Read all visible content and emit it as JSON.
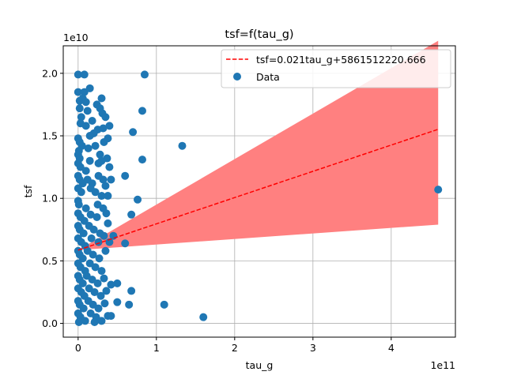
{
  "chart_data": {
    "type": "scatter",
    "title": "tsf=f(tau_g)",
    "xlabel": "tau_g",
    "ylabel": "tsf",
    "x_multiplier": "1e11",
    "y_multiplier": "1e10",
    "xlim": [
      -19000000000.0,
      482000000000.0
    ],
    "ylim": [
      -1100000000.0,
      22200000000.0
    ],
    "x_ticks": [
      0,
      100000000000.0,
      200000000000.0,
      300000000000.0,
      400000000000.0
    ],
    "x_tick_labels": [
      "0",
      "1",
      "2",
      "3",
      "4"
    ],
    "y_ticks": [
      0,
      5000000000.0,
      10000000000.0,
      15000000000.0,
      20000000000.0
    ],
    "y_tick_labels": [
      "0.0",
      "0.5",
      "1.0",
      "1.5",
      "2.0"
    ],
    "grid": true,
    "legend_position": "top-right",
    "colors": {
      "points": "#1f77b4",
      "fit_line": "#ff0000",
      "band": "#ff8080",
      "grid": "#b0b0b0"
    },
    "fit": {
      "label": "tsf=0.021tau_g+5861512220.666",
      "slope": 0.021,
      "intercept": 5861512220.666,
      "x_range": [
        0,
        460000000000.0
      ],
      "band_lower_end": 7900000000.0,
      "band_upper_end": 22600000000.0
    },
    "series": [
      {
        "name": "Data",
        "points": [
          [
            0,
            19900000000.0
          ],
          [
            8000000000.0,
            19900000000.0
          ],
          [
            0,
            18500000000.0
          ],
          [
            8000000000.0,
            18500000000.0
          ],
          [
            15000000000.0,
            18800000000.0
          ],
          [
            2000000000.0,
            17800000000.0
          ],
          [
            6000000000.0,
            18000000000.0
          ],
          [
            10000000000.0,
            17700000000.0
          ],
          [
            30000000000.0,
            18000000000.0
          ],
          [
            2000000000.0,
            17200000000.0
          ],
          [
            28000000000.0,
            17200000000.0
          ],
          [
            31000000000.0,
            16800000000.0
          ],
          [
            35000000000.0,
            16500000000.0
          ],
          [
            24000000000.0,
            17500000000.0
          ],
          [
            12000000000.0,
            17000000000.0
          ],
          [
            4000000000.0,
            16500000000.0
          ],
          [
            3000000000.0,
            16000000000.0
          ],
          [
            10000000000.0,
            15800000000.0
          ],
          [
            18000000000.0,
            16200000000.0
          ],
          [
            25000000000.0,
            15500000000.0
          ],
          [
            32000000000.0,
            15600000000.0
          ],
          [
            40000000000.0,
            15800000000.0
          ],
          [
            20000000000.0,
            15200000000.0
          ],
          [
            15000000000.0,
            15000000000.0
          ],
          [
            38000000000.0,
            14800000000.0
          ],
          [
            0,
            14800000000.0
          ],
          [
            2000000000.0,
            14500000000.0
          ],
          [
            5000000000.0,
            14200000000.0
          ],
          [
            1000000000.0,
            13800000000.0
          ],
          [
            0,
            13500000000.0
          ],
          [
            2000000000.0,
            13200000000.0
          ],
          [
            13000000000.0,
            14000000000.0
          ],
          [
            22000000000.0,
            14200000000.0
          ],
          [
            28000000000.0,
            13500000000.0
          ],
          [
            33000000000.0,
            14500000000.0
          ],
          [
            37000000000.0,
            13200000000.0
          ],
          [
            0,
            12800000000.0
          ],
          [
            3000000000.0,
            12500000000.0
          ],
          [
            15000000000.0,
            13000000000.0
          ],
          [
            26000000000.0,
            12800000000.0
          ],
          [
            30000000000.0,
            13000000000.0
          ],
          [
            40000000000.0,
            12500000000.0
          ],
          [
            10000000000.0,
            12200000000.0
          ],
          [
            0,
            11800000000.0
          ],
          [
            2000000000.0,
            11500000000.0
          ],
          [
            6000000000.0,
            11200000000.0
          ],
          [
            12000000000.0,
            11500000000.0
          ],
          [
            18000000000.0,
            11200000000.0
          ],
          [
            26000000000.0,
            11800000000.0
          ],
          [
            32000000000.0,
            11500000000.0
          ],
          [
            42000000000.0,
            11500000000.0
          ],
          [
            0,
            10800000000.0
          ],
          [
            4000000000.0,
            10500000000.0
          ],
          [
            16000000000.0,
            10800000000.0
          ],
          [
            22000000000.0,
            10500000000.0
          ],
          [
            30000000000.0,
            10200000000.0
          ],
          [
            35000000000.0,
            11000000000.0
          ],
          [
            38000000000.0,
            10200000000.0
          ],
          [
            0,
            9800000000.0
          ],
          [
            1000000000.0,
            9500000000.0
          ],
          [
            10000000000.0,
            9200000000.0
          ],
          [
            25000000000.0,
            9500000000.0
          ],
          [
            32000000000.0,
            9200000000.0
          ],
          [
            0,
            8800000000.0
          ],
          [
            3000000000.0,
            8500000000.0
          ],
          [
            8000000000.0,
            8200000000.0
          ],
          [
            16000000000.0,
            8700000000.0
          ],
          [
            24000000000.0,
            8500000000.0
          ],
          [
            36000000000.0,
            8800000000.0
          ],
          [
            0,
            7800000000.0
          ],
          [
            2000000000.0,
            7500000000.0
          ],
          [
            7000000000.0,
            7200000000.0
          ],
          [
            14000000000.0,
            7800000000.0
          ],
          [
            20000000000.0,
            7500000000.0
          ],
          [
            28000000000.0,
            7200000000.0
          ],
          [
            38000000000.0,
            8000000000.0
          ],
          [
            0,
            6800000000.0
          ],
          [
            4000000000.0,
            6500000000.0
          ],
          [
            9000000000.0,
            6200000000.0
          ],
          [
            17000000000.0,
            6800000000.0
          ],
          [
            26000000000.0,
            6500000000.0
          ],
          [
            33000000000.0,
            7000000000.0
          ],
          [
            40000000000.0,
            6500000000.0
          ],
          [
            0,
            5800000000.0
          ],
          [
            2000000000.0,
            5500000000.0
          ],
          [
            6000000000.0,
            5200000000.0
          ],
          [
            12000000000.0,
            5800000000.0
          ],
          [
            19000000000.0,
            5500000000.0
          ],
          [
            27000000000.0,
            5200000000.0
          ],
          [
            35000000000.0,
            5800000000.0
          ],
          [
            0,
            4800000000.0
          ],
          [
            3000000000.0,
            4500000000.0
          ],
          [
            9000000000.0,
            4200000000.0
          ],
          [
            15000000000.0,
            4800000000.0
          ],
          [
            22000000000.0,
            4500000000.0
          ],
          [
            30000000000.0,
            4200000000.0
          ],
          [
            0,
            3800000000.0
          ],
          [
            2000000000.0,
            3500000000.0
          ],
          [
            6000000000.0,
            3200000000.0
          ],
          [
            11000000000.0,
            3800000000.0
          ],
          [
            18000000000.0,
            3500000000.0
          ],
          [
            25000000000.0,
            3200000000.0
          ],
          [
            33000000000.0,
            3600000000.0
          ],
          [
            0,
            2800000000.0
          ],
          [
            4000000000.0,
            2500000000.0
          ],
          [
            8000000000.0,
            2200000000.0
          ],
          [
            14000000000.0,
            2800000000.0
          ],
          [
            21000000000.0,
            2500000000.0
          ],
          [
            29000000000.0,
            2200000000.0
          ],
          [
            36000000000.0,
            2600000000.0
          ],
          [
            0,
            1800000000.0
          ],
          [
            2000000000.0,
            1500000000.0
          ],
          [
            7000000000.0,
            1200000000.0
          ],
          [
            13000000000.0,
            1800000000.0
          ],
          [
            19000000000.0,
            1500000000.0
          ],
          [
            26000000000.0,
            1200000000.0
          ],
          [
            34000000000.0,
            1600000000.0
          ],
          [
            0,
            800000000.0
          ],
          [
            3000000000.0,
            500000000.0
          ],
          [
            9000000000.0,
            200000000.0
          ],
          [
            16000000000.0,
            800000000.0
          ],
          [
            23000000000.0,
            500000000.0
          ],
          [
            30000000000.0,
            200000000.0
          ],
          [
            38000000000.0,
            600000000.0
          ],
          [
            1000000000.0,
            100000000.0
          ],
          [
            21000000000.0,
            100000000.0
          ],
          [
            85000000000.0,
            19900000000.0
          ],
          [
            82000000000.0,
            17000000000.0
          ],
          [
            70000000000.0,
            15300000000.0
          ],
          [
            82000000000.0,
            13100000000.0
          ],
          [
            60000000000.0,
            11800000000.0
          ],
          [
            76000000000.0,
            9900000000.0
          ],
          [
            68000000000.0,
            8700000000.0
          ],
          [
            60000000000.0,
            6400000000.0
          ],
          [
            45000000000.0,
            7000000000.0
          ],
          [
            50000000000.0,
            3200000000.0
          ],
          [
            42000000000.0,
            3100000000.0
          ],
          [
            68000000000.0,
            2600000000.0
          ],
          [
            50000000000.0,
            1700000000.0
          ],
          [
            65000000000.0,
            1500000000.0
          ],
          [
            42000000000.0,
            600000000.0
          ],
          [
            133000000000.0,
            14200000000.0
          ],
          [
            110000000000.0,
            1500000000.0
          ],
          [
            160000000000.0,
            500000000.0
          ],
          [
            460000000000.0,
            10700000000.0
          ]
        ]
      }
    ]
  }
}
